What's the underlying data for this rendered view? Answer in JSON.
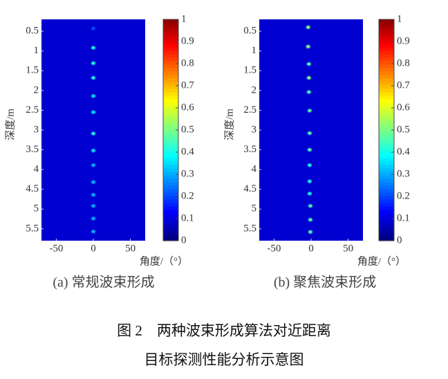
{
  "chart_data": [
    {
      "type": "heatmap",
      "subtitle": "(a) 常规波束形成",
      "xlabel": "角度/（°）",
      "ylabel": "深度/m",
      "xlim": [
        -70,
        70
      ],
      "xticks": [
        -50,
        0,
        50
      ],
      "ylim": [
        0.2,
        5.8
      ],
      "yticks": [
        0.5,
        1,
        1.5,
        2,
        2.5,
        3,
        3.5,
        4,
        4.5,
        5,
        5.5
      ],
      "y_reversed": true,
      "colormap": "jet",
      "clim": [
        0,
        1
      ],
      "cticks": [
        0,
        0.1,
        0.2,
        0.3,
        0.4,
        0.5,
        0.6,
        0.7,
        0.8,
        0.9,
        1
      ],
      "x": [
        0,
        0,
        0,
        0,
        0,
        0,
        0,
        0,
        0,
        0,
        0,
        0,
        0,
        0
      ],
      "y": [
        0.43,
        0.92,
        1.31,
        1.68,
        2.14,
        2.55,
        3.09,
        3.52,
        3.89,
        4.32,
        4.64,
        4.92,
        5.24,
        5.57
      ],
      "values": [
        0.2,
        0.4,
        0.4,
        0.4,
        0.35,
        0.35,
        0.4,
        0.35,
        0.3,
        0.3,
        0.3,
        0.3,
        0.3,
        0.3
      ]
    },
    {
      "type": "heatmap",
      "subtitle": "(b) 聚焦波束形成",
      "xlabel": "角度/（°）",
      "ylabel": "深度/m",
      "xlim": [
        -70,
        70
      ],
      "xticks": [
        -50,
        0,
        50
      ],
      "ylim": [
        0.2,
        5.8
      ],
      "yticks": [
        0.5,
        1,
        1.5,
        2,
        2.5,
        3,
        3.5,
        4,
        4.5,
        5,
        5.5
      ],
      "y_reversed": true,
      "colormap": "jet",
      "clim": [
        0,
        1
      ],
      "cticks": [
        0,
        0.1,
        0.2,
        0.3,
        0.4,
        0.5,
        0.6,
        0.7,
        0.8,
        0.9,
        1
      ],
      "x": [
        -4,
        -4,
        -3,
        -3,
        -3,
        -2,
        -2,
        -2,
        -2,
        -2,
        -2,
        -1,
        -1,
        -1
      ],
      "y": [
        0.4,
        0.89,
        1.33,
        1.68,
        2.04,
        2.51,
        3.08,
        3.5,
        3.89,
        4.3,
        4.61,
        4.92,
        5.27,
        5.58
      ],
      "values": [
        0.5,
        0.5,
        0.45,
        0.5,
        0.45,
        0.45,
        0.45,
        0.45,
        0.4,
        0.4,
        0.4,
        0.45,
        0.45,
        0.45
      ]
    }
  ],
  "caption": [
    "图 2　两种波束形成算法对近距离",
    "目标探测性能分析示意图"
  ]
}
